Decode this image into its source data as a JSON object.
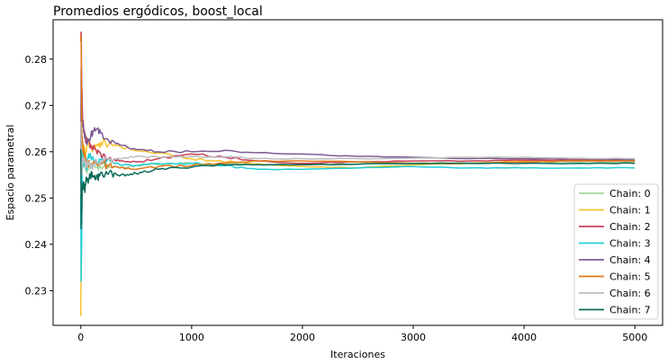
{
  "chart_data": {
    "type": "line",
    "title": "Promedios ergódicos, boost_local",
    "xlabel": "Iteraciones",
    "ylabel": "Espacio parametral",
    "xlim": [
      -250,
      5250
    ],
    "ylim": [
      0.2225,
      0.2885
    ],
    "xticks": [
      0,
      1000,
      2000,
      3000,
      4000,
      5000
    ],
    "yticks": [
      0.23,
      0.24,
      0.25,
      0.26,
      0.27,
      0.28
    ],
    "xtick_labels": [
      "0",
      "1000",
      "2000",
      "3000",
      "4000",
      "5000"
    ],
    "ytick_labels": [
      "0.23",
      "0.24",
      "0.25",
      "0.26",
      "0.27",
      "0.28"
    ],
    "grid": false,
    "legend_position": "lower-right",
    "series": [
      {
        "name": "Chain: 0",
        "color": "#a6d49a",
        "x": [
          0,
          5,
          15,
          30,
          50,
          80,
          120,
          180,
          250,
          350,
          500,
          700,
          1000,
          1500,
          2000,
          2500,
          3000,
          3500,
          4000,
          4500,
          5000
        ],
        "y": [
          0.2445,
          0.255,
          0.26,
          0.258,
          0.256,
          0.257,
          0.2575,
          0.2565,
          0.2568,
          0.2566,
          0.257,
          0.2572,
          0.2575,
          0.2573,
          0.2572,
          0.2574,
          0.2575,
          0.2576,
          0.2578,
          0.2578,
          0.2578
        ]
      },
      {
        "name": "Chain: 1",
        "color": "#f5c22e",
        "x": [
          0,
          3,
          8,
          15,
          25,
          40,
          60,
          90,
          130,
          180,
          250,
          350,
          450,
          600,
          800,
          1000,
          1200,
          1500,
          2000,
          2500,
          3000,
          3500,
          4000,
          4500,
          5000
        ],
        "y": [
          0.2245,
          0.243,
          0.262,
          0.258,
          0.2615,
          0.259,
          0.2625,
          0.261,
          0.2605,
          0.262,
          0.2615,
          0.2612,
          0.2605,
          0.26,
          0.2595,
          0.2585,
          0.258,
          0.2575,
          0.2568,
          0.2565,
          0.2572,
          0.2575,
          0.258,
          0.2582,
          0.2582
        ]
      },
      {
        "name": "Chain: 2",
        "color": "#c9405a",
        "x": [
          0,
          3,
          8,
          15,
          25,
          40,
          60,
          90,
          130,
          180,
          250,
          350,
          500,
          700,
          1000,
          1300,
          1600,
          2000,
          2500,
          3000,
          3500,
          4000,
          4500,
          5000
        ],
        "y": [
          0.284,
          0.2855,
          0.275,
          0.268,
          0.265,
          0.263,
          0.262,
          0.2615,
          0.2605,
          0.2595,
          0.2585,
          0.258,
          0.2578,
          0.2585,
          0.2595,
          0.2588,
          0.258,
          0.2575,
          0.2578,
          0.258,
          0.258,
          0.2582,
          0.2582,
          0.2582
        ]
      },
      {
        "name": "Chain: 3",
        "color": "#22cfd8",
        "x": [
          0,
          3,
          8,
          12,
          18,
          25,
          35,
          50,
          70,
          100,
          150,
          200,
          300,
          400,
          600,
          800,
          1000,
          1300,
          1600,
          2000,
          2500,
          3000,
          3500,
          4000,
          4500,
          5000
        ],
        "y": [
          0.2505,
          0.232,
          0.242,
          0.255,
          0.26,
          0.257,
          0.2585,
          0.256,
          0.2595,
          0.2585,
          0.2575,
          0.258,
          0.2575,
          0.2572,
          0.2572,
          0.2575,
          0.2575,
          0.257,
          0.2562,
          0.2562,
          0.2565,
          0.2568,
          0.2565,
          0.2565,
          0.2565,
          0.2565
        ]
      },
      {
        "name": "Chain: 4",
        "color": "#7b5b93",
        "x": [
          0,
          3,
          8,
          15,
          25,
          40,
          60,
          90,
          130,
          180,
          250,
          350,
          500,
          700,
          1000,
          1300,
          1600,
          2000,
          2500,
          3000,
          3500,
          4000,
          4500,
          5000
        ],
        "y": [
          0.2595,
          0.278,
          0.27,
          0.266,
          0.265,
          0.263,
          0.262,
          0.2635,
          0.2645,
          0.264,
          0.2625,
          0.2615,
          0.2605,
          0.26,
          0.26,
          0.2603,
          0.2598,
          0.2595,
          0.259,
          0.2588,
          0.2585,
          0.2585,
          0.2585,
          0.2582
        ]
      },
      {
        "name": "Chain: 5",
        "color": "#e07a1c",
        "x": [
          0,
          3,
          8,
          15,
          25,
          40,
          60,
          90,
          130,
          180,
          250,
          350,
          500,
          700,
          1000,
          1300,
          1600,
          2000,
          2500,
          3000,
          3500,
          4000,
          4500,
          5000
        ],
        "y": [
          0.285,
          0.2845,
          0.265,
          0.262,
          0.26,
          0.2585,
          0.2575,
          0.257,
          0.2578,
          0.2575,
          0.2568,
          0.2565,
          0.2562,
          0.2568,
          0.257,
          0.2575,
          0.258,
          0.258,
          0.2578,
          0.2575,
          0.2575,
          0.2578,
          0.258,
          0.258
        ]
      },
      {
        "name": "Chain: 6",
        "color": "#bdbdbd",
        "x": [
          0,
          3,
          8,
          15,
          25,
          40,
          60,
          90,
          130,
          180,
          250,
          350,
          500,
          700,
          1000,
          1300,
          1600,
          2000,
          2500,
          3000,
          3500,
          4000,
          4500,
          5000
        ],
        "y": [
          0.2665,
          0.261,
          0.255,
          0.2575,
          0.2585,
          0.2575,
          0.257,
          0.2568,
          0.2575,
          0.258,
          0.2582,
          0.2585,
          0.259,
          0.2588,
          0.259,
          0.2588,
          0.2585,
          0.2585,
          0.2585,
          0.2586,
          0.2588,
          0.2588,
          0.2586,
          0.2585
        ]
      },
      {
        "name": "Chain: 7",
        "color": "#0b6b5a",
        "x": [
          0,
          3,
          8,
          12,
          18,
          25,
          35,
          50,
          70,
          100,
          130,
          170,
          220,
          280,
          350,
          450,
          550,
          700,
          900,
          1100,
          1400,
          1700,
          2000,
          2500,
          3000,
          3500,
          4000,
          4500,
          5000
        ],
        "y": [
          0.2605,
          0.2435,
          0.2465,
          0.252,
          0.2525,
          0.2535,
          0.2515,
          0.2545,
          0.254,
          0.2555,
          0.254,
          0.2548,
          0.2552,
          0.2555,
          0.2548,
          0.2552,
          0.2555,
          0.2562,
          0.2565,
          0.257,
          0.2572,
          0.2572,
          0.2572,
          0.2573,
          0.2575,
          0.2575,
          0.2575,
          0.2575,
          0.2575
        ]
      }
    ]
  }
}
